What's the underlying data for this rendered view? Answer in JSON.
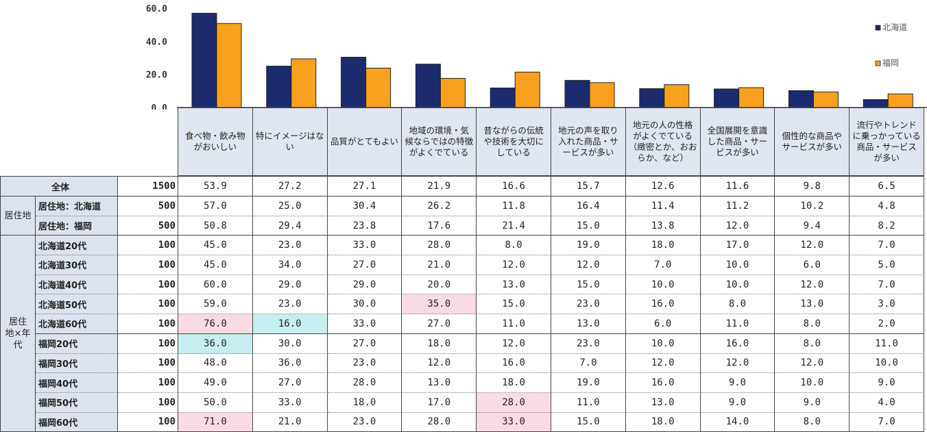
{
  "chart_data": {
    "type": "bar",
    "categories": [
      "食べ物・飲み物がおいしい",
      "特にイメージはない",
      "品質がとてもよい",
      "地域の環境・気候ならではの特徴がよくでている",
      "昔ながらの伝統や技術を大切にしている",
      "地元の声を取り入れた商品・サービスが多い",
      "地元の人の性格がよくでている（緻密とか、おおらか、など）",
      "全国展開を意識した商品・サービスが多い",
      "個性的な商品やサービスが多い",
      "流行やトレンドに乗っかっている商品・サービスが多い"
    ],
    "series": [
      {
        "name": "北海道",
        "color": "#1c2a6e",
        "values": [
          57.0,
          25.0,
          30.4,
          26.2,
          11.8,
          16.4,
          11.4,
          11.2,
          10.2,
          4.8
        ]
      },
      {
        "name": "福岡",
        "color": "#f7a11e",
        "values": [
          50.8,
          29.4,
          23.8,
          17.6,
          21.4,
          15.0,
          13.8,
          12.0,
          9.4,
          8.2
        ]
      }
    ],
    "yticks": [
      "0.0",
      "20.0",
      "40.0",
      "60.0"
    ],
    "ylim": [
      0,
      60
    ],
    "legend": "right",
    "grid": false
  },
  "table": {
    "headers": [
      "食べ物・飲み物がおいしい",
      "特にイメージはない",
      "品質がとてもよい",
      "地域の環境・気候ならではの特徴がよくでている",
      "昔ながらの伝統や技術を大切にしている",
      "地元の声を取り入れた商品・サービスが多い",
      "地元の人の性格がよくでている（緻密とか、おおらか、など）",
      "全国展開を意識した商品・サービスが多い",
      "個性的な商品やサービスが多い",
      "流行やトレンドに乗っかっている商品・サービスが多い"
    ],
    "groups": [
      {
        "label": "居住地"
      },
      {
        "label": "居住地×年代"
      }
    ],
    "highlight_colors": {
      "high": "#f8dbe3",
      "low": "#c5eef0"
    },
    "rows": [
      {
        "label": "全体",
        "n": "1500",
        "values": [
          "53.9",
          "27.2",
          "27.1",
          "21.9",
          "16.6",
          "15.7",
          "12.6",
          "11.6",
          "9.8",
          "6.5"
        ]
      },
      {
        "label": "居住地：北海道",
        "n": "500",
        "values": [
          "57.0",
          "25.0",
          "30.4",
          "26.2",
          "11.8",
          "16.4",
          "11.4",
          "11.2",
          "10.2",
          "4.8"
        ]
      },
      {
        "label": "居住地：福岡",
        "n": "500",
        "values": [
          "50.8",
          "29.4",
          "23.8",
          "17.6",
          "21.4",
          "15.0",
          "13.8",
          "12.0",
          "9.4",
          "8.2"
        ]
      },
      {
        "label": "北海道20代",
        "n": "100",
        "values": [
          "45.0",
          "23.0",
          "33.0",
          "28.0",
          "8.0",
          "19.0",
          "18.0",
          "17.0",
          "12.0",
          "7.0"
        ]
      },
      {
        "label": "北海道30代",
        "n": "100",
        "values": [
          "45.0",
          "34.0",
          "27.0",
          "21.0",
          "12.0",
          "12.0",
          "7.0",
          "10.0",
          "6.0",
          "5.0"
        ]
      },
      {
        "label": "北海道40代",
        "n": "100",
        "values": [
          "60.0",
          "29.0",
          "29.0",
          "20.0",
          "13.0",
          "15.0",
          "10.0",
          "10.0",
          "12.0",
          "7.0"
        ]
      },
      {
        "label": "北海道50代",
        "n": "100",
        "values": [
          "59.0",
          "23.0",
          "30.0",
          "35.0",
          "15.0",
          "23.0",
          "16.0",
          "8.0",
          "13.0",
          "3.0"
        ],
        "highlights": {
          "3": "high"
        }
      },
      {
        "label": "北海道60代",
        "n": "100",
        "values": [
          "76.0",
          "16.0",
          "33.0",
          "27.0",
          "11.0",
          "13.0",
          "6.0",
          "11.0",
          "8.0",
          "2.0"
        ],
        "highlights": {
          "0": "high",
          "1": "low"
        }
      },
      {
        "label": "福岡20代",
        "n": "100",
        "values": [
          "36.0",
          "30.0",
          "27.0",
          "18.0",
          "12.0",
          "23.0",
          "10.0",
          "16.0",
          "8.0",
          "11.0"
        ],
        "highlights": {
          "0": "low"
        }
      },
      {
        "label": "福岡30代",
        "n": "100",
        "values": [
          "48.0",
          "36.0",
          "23.0",
          "12.0",
          "16.0",
          "7.0",
          "12.0",
          "12.0",
          "12.0",
          "10.0"
        ]
      },
      {
        "label": "福岡40代",
        "n": "100",
        "values": [
          "49.0",
          "27.0",
          "28.0",
          "13.0",
          "18.0",
          "19.0",
          "16.0",
          "9.0",
          "10.0",
          "9.0"
        ]
      },
      {
        "label": "福岡50代",
        "n": "100",
        "values": [
          "50.0",
          "33.0",
          "18.0",
          "17.0",
          "28.0",
          "11.0",
          "13.0",
          "9.0",
          "9.0",
          "4.0"
        ],
        "highlights": {
          "4": "high"
        }
      },
      {
        "label": "福岡60代",
        "n": "100",
        "values": [
          "71.0",
          "21.0",
          "23.0",
          "28.0",
          "33.0",
          "15.0",
          "18.0",
          "14.0",
          "8.0",
          "7.0"
        ],
        "highlights": {
          "0": "high",
          "4": "high"
        }
      }
    ]
  }
}
